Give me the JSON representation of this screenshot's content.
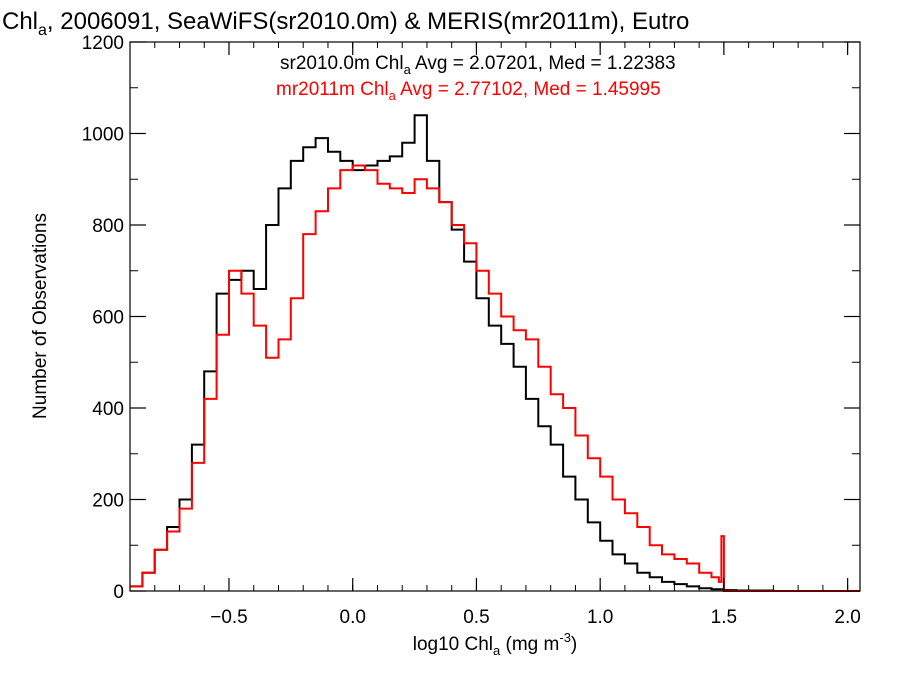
{
  "chart_data": {
    "type": "line",
    "title_parts": [
      "Chl",
      "a",
      ", 2006091, SeaWiFS(sr2010.0m) & MERIS(mr2011m), Eutro"
    ],
    "xlabel_parts": [
      "log10 Chl",
      "a",
      " (mg m",
      "-3",
      ")"
    ],
    "ylabel": "Number of Observations",
    "xlim": [
      -0.9,
      2.05
    ],
    "ylim": [
      0,
      1200
    ],
    "x_ticks": [
      -0.5,
      0.0,
      0.5,
      1.0,
      1.5,
      2.0
    ],
    "x_tick_labels": [
      "−0.5",
      "0.0",
      "0.5",
      "1.0",
      "1.5",
      "2.0"
    ],
    "y_ticks": [
      0,
      200,
      400,
      600,
      800,
      1000,
      1200
    ],
    "y_tick_labels": [
      "0",
      "200",
      "400",
      "600",
      "800",
      "1000",
      "1200"
    ],
    "grid": false,
    "legend_position": "top-right",
    "legend": [
      {
        "parts": [
          "sr2010.0m Chl",
          "a",
          " Avg = 2.07201, Med = 1.22383"
        ],
        "color": "#000000"
      },
      {
        "parts": [
          "mr2011m Chl",
          "a",
          " Avg = 2.77102, Med = 1.45995"
        ],
        "color": "#ff0000"
      }
    ],
    "series": [
      {
        "name": "sr2010.0m",
        "color": "#000000",
        "x": [
          -0.9,
          -0.85,
          -0.8,
          -0.75,
          -0.7,
          -0.65,
          -0.6,
          -0.55,
          -0.5,
          -0.45,
          -0.4,
          -0.35,
          -0.3,
          -0.25,
          -0.2,
          -0.15,
          -0.1,
          -0.05,
          0.0,
          0.05,
          0.1,
          0.15,
          0.2,
          0.25,
          0.3,
          0.35,
          0.4,
          0.45,
          0.5,
          0.55,
          0.6,
          0.65,
          0.7,
          0.75,
          0.8,
          0.85,
          0.9,
          0.95,
          1.0,
          1.05,
          1.1,
          1.15,
          1.2,
          1.25,
          1.3,
          1.35,
          1.4,
          1.45,
          1.5,
          1.55,
          1.6,
          1.7,
          1.8,
          1.9,
          2.05
        ],
        "y": [
          10,
          40,
          90,
          140,
          200,
          320,
          480,
          650,
          680,
          700,
          660,
          800,
          880,
          940,
          970,
          990,
          960,
          940,
          920,
          930,
          940,
          950,
          980,
          1040,
          940,
          850,
          790,
          720,
          640,
          580,
          540,
          490,
          420,
          360,
          320,
          250,
          200,
          150,
          110,
          80,
          60,
          40,
          30,
          20,
          15,
          10,
          6,
          4,
          2,
          1,
          1,
          0,
          0,
          0,
          0
        ]
      },
      {
        "name": "mr2011m",
        "color": "#ff0000",
        "x": [
          -0.9,
          -0.85,
          -0.8,
          -0.75,
          -0.7,
          -0.65,
          -0.6,
          -0.55,
          -0.5,
          -0.45,
          -0.4,
          -0.35,
          -0.3,
          -0.25,
          -0.2,
          -0.15,
          -0.1,
          -0.05,
          0.0,
          0.05,
          0.1,
          0.15,
          0.2,
          0.25,
          0.3,
          0.35,
          0.4,
          0.45,
          0.5,
          0.55,
          0.6,
          0.65,
          0.7,
          0.75,
          0.8,
          0.85,
          0.9,
          0.95,
          1.0,
          1.05,
          1.1,
          1.15,
          1.2,
          1.25,
          1.3,
          1.35,
          1.4,
          1.45,
          1.48,
          1.49,
          1.5,
          1.6,
          1.8,
          2.0,
          2.05
        ],
        "y": [
          10,
          40,
          90,
          130,
          180,
          280,
          420,
          560,
          700,
          650,
          580,
          510,
          550,
          640,
          780,
          830,
          880,
          920,
          930,
          920,
          890,
          880,
          870,
          900,
          880,
          850,
          800,
          760,
          700,
          650,
          600,
          570,
          550,
          490,
          430,
          400,
          340,
          290,
          250,
          200,
          170,
          140,
          100,
          80,
          70,
          60,
          40,
          30,
          20,
          120,
          0,
          0,
          0,
          0,
          0
        ]
      }
    ]
  }
}
